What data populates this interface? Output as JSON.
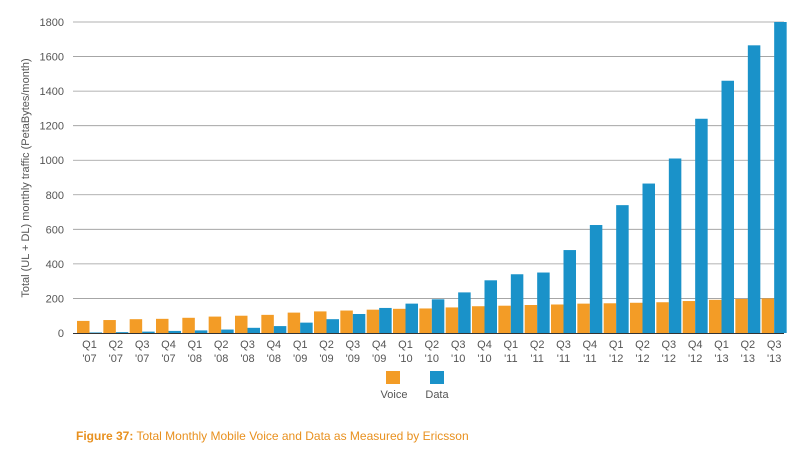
{
  "caption": {
    "label": "Figure 37:",
    "text": " Total Monthly Mobile Voice and Data as Measured by Ericsson"
  },
  "colors": {
    "voice": "#f39c26",
    "data": "#1a92c9",
    "grid": "#999999",
    "axis": "#333333"
  },
  "chart_data": {
    "type": "bar",
    "ylabel": "Total (UL + DL) monthly traffic (PetaBytes/month)",
    "xlabel": "",
    "ylim": [
      0,
      1800
    ],
    "yticks": [
      0,
      200,
      400,
      600,
      800,
      1000,
      1200,
      1400,
      1600,
      1800
    ],
    "grid": true,
    "legend": "bottom-center",
    "categories": [
      [
        "Q1",
        "'07"
      ],
      [
        "Q2",
        "'07"
      ],
      [
        "Q3",
        "'07"
      ],
      [
        "Q4",
        "'07"
      ],
      [
        "Q1",
        "'08"
      ],
      [
        "Q2",
        "'08"
      ],
      [
        "Q3",
        "'08"
      ],
      [
        "Q4",
        "'08"
      ],
      [
        "Q1",
        "'09"
      ],
      [
        "Q2",
        "'09"
      ],
      [
        "Q3",
        "'09"
      ],
      [
        "Q4",
        "'09"
      ],
      [
        "Q1",
        "'10"
      ],
      [
        "Q2",
        "'10"
      ],
      [
        "Q3",
        "'10"
      ],
      [
        "Q4",
        "'10"
      ],
      [
        "Q1",
        "'11"
      ],
      [
        "Q2",
        "'11"
      ],
      [
        "Q3",
        "'11"
      ],
      [
        "Q4",
        "'11"
      ],
      [
        "Q1",
        "'12"
      ],
      [
        "Q2",
        "'12"
      ],
      [
        "Q3",
        "'12"
      ],
      [
        "Q4",
        "'12"
      ],
      [
        "Q1",
        "'13"
      ],
      [
        "Q2",
        "'13"
      ],
      [
        "Q3",
        "'13"
      ]
    ],
    "series": [
      {
        "name": "Voice",
        "color": "#f39c26",
        "values": [
          70,
          75,
          80,
          82,
          88,
          95,
          100,
          105,
          118,
          125,
          130,
          135,
          140,
          142,
          148,
          155,
          158,
          162,
          165,
          170,
          172,
          175,
          178,
          185,
          192,
          197,
          200
        ]
      },
      {
        "name": "Data",
        "color": "#1a92c9",
        "values": [
          3,
          5,
          8,
          12,
          15,
          20,
          30,
          40,
          60,
          80,
          110,
          145,
          170,
          195,
          235,
          305,
          340,
          350,
          480,
          625,
          740,
          865,
          1010,
          1240,
          1460,
          1665,
          1800
        ]
      }
    ]
  }
}
